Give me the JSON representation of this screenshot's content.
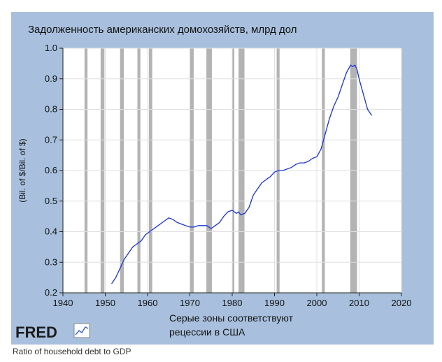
{
  "chart_data": {
    "type": "line",
    "title": "Задолженность американских домохозяйств, млрд дол",
    "ylabel": "(Bil. of $/Bil. of $)",
    "xlabel_line1": "Серые зоны соответствуют",
    "xlabel_line2": "рецессии в США",
    "xlim": [
      1940,
      2020
    ],
    "ylim": [
      0.2,
      1.0
    ],
    "x_ticks": [
      1940,
      1950,
      1960,
      1970,
      1980,
      1990,
      2000,
      2010,
      2020
    ],
    "y_ticks": [
      "0.2",
      "0.3",
      "0.4",
      "0.5",
      "0.6",
      "0.7",
      "0.8",
      "0.9",
      "1.0"
    ],
    "grid": true,
    "recessions": [
      [
        1945.1,
        1945.8
      ],
      [
        1948.9,
        1949.8
      ],
      [
        1953.5,
        1954.4
      ],
      [
        1957.6,
        1958.3
      ],
      [
        1960.3,
        1961.1
      ],
      [
        1969.9,
        1970.9
      ],
      [
        1973.9,
        1975.2
      ],
      [
        1980.0,
        1980.5
      ],
      [
        1981.5,
        1982.9
      ],
      [
        1990.5,
        1991.2
      ],
      [
        2001.2,
        2001.9
      ],
      [
        2007.9,
        2009.5
      ]
    ],
    "series": [
      {
        "color": "#1a33d6",
        "x": [
          1951.5,
          1952.5,
          1953.5,
          1954.5,
          1955.5,
          1956.5,
          1957.5,
          1958.5,
          1959.5,
          1960.5,
          1961.5,
          1962.5,
          1963.5,
          1964.5,
          1965.0,
          1966.0,
          1967.0,
          1968.0,
          1969.0,
          1970.0,
          1971.0,
          1972.0,
          1973.0,
          1974.0,
          1975.0,
          1976.0,
          1977.0,
          1978.0,
          1979.0,
          1980.0,
          1980.5,
          1981.0,
          1981.5,
          1982.0,
          1983.0,
          1984.0,
          1985.0,
          1986.0,
          1987.0,
          1988.0,
          1989.0,
          1990.0,
          1991.0,
          1992.0,
          1993.0,
          1994.0,
          1995.0,
          1996.0,
          1997.0,
          1998.0,
          1999.0,
          2000.0,
          2001.0,
          2002.0,
          2003.0,
          2004.0,
          2005.0,
          2006.0,
          2007.0,
          2008.0,
          2008.5,
          2009.0,
          2009.5,
          2010.0,
          2011.0,
          2012.0,
          2013.0
        ],
        "values": [
          0.23,
          0.25,
          0.28,
          0.31,
          0.33,
          0.35,
          0.36,
          0.37,
          0.39,
          0.4,
          0.41,
          0.42,
          0.43,
          0.44,
          0.445,
          0.44,
          0.43,
          0.425,
          0.42,
          0.415,
          0.415,
          0.42,
          0.42,
          0.42,
          0.41,
          0.42,
          0.43,
          0.45,
          0.465,
          0.47,
          0.465,
          0.46,
          0.465,
          0.455,
          0.46,
          0.48,
          0.52,
          0.54,
          0.56,
          0.57,
          0.58,
          0.595,
          0.6,
          0.6,
          0.605,
          0.61,
          0.62,
          0.625,
          0.625,
          0.63,
          0.64,
          0.645,
          0.67,
          0.72,
          0.77,
          0.81,
          0.84,
          0.88,
          0.92,
          0.945,
          0.94,
          0.945,
          0.93,
          0.9,
          0.85,
          0.8,
          0.78
        ]
      }
    ]
  },
  "branding": {
    "logo": "FRED"
  },
  "caption": "Ratio of household debt to GDP"
}
